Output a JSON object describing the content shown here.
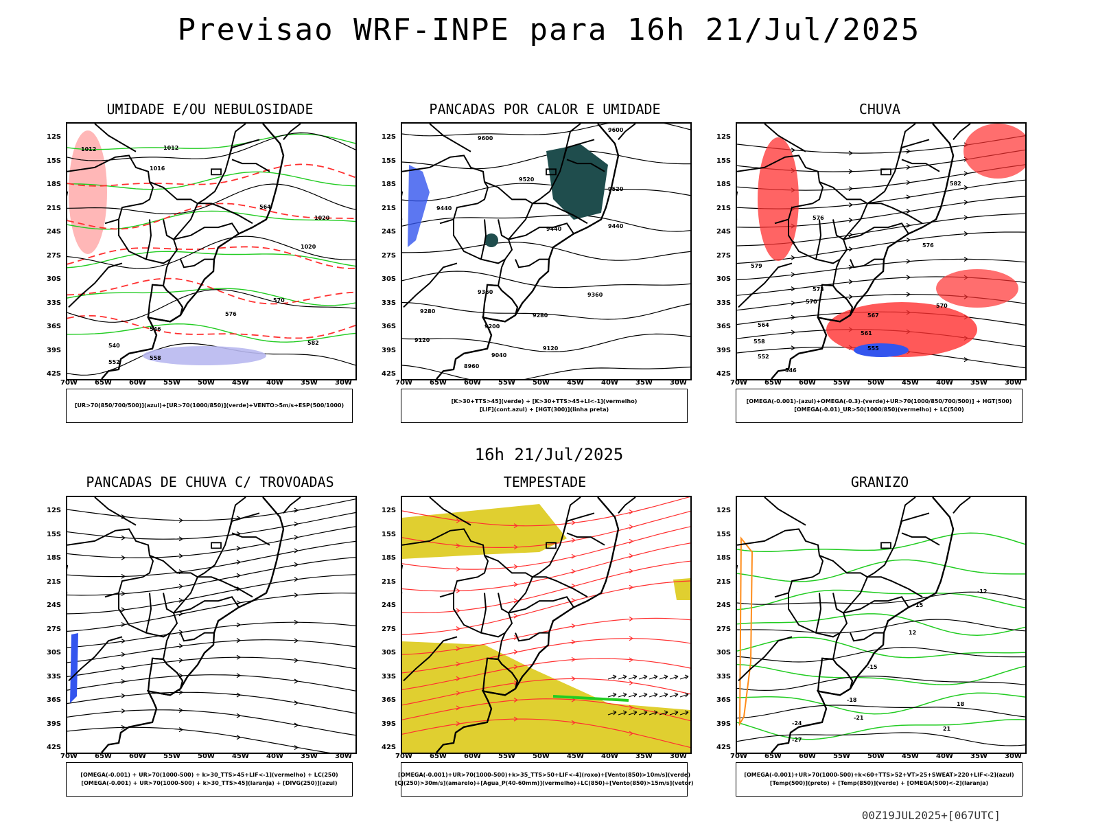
{
  "title": "Previsao WRF-INPE  para 16h 21/Jul/2025",
  "subtitle": "16h 21/Jul/2025",
  "footer": "00Z19JUL2025+[067UTC]",
  "lat_labels": [
    "12S",
    "15S",
    "18S",
    "21S",
    "24S",
    "27S",
    "30S",
    "33S",
    "36S",
    "39S",
    "42S"
  ],
  "lon_labels": [
    "70W",
    "65W",
    "60W",
    "55W",
    "50W",
    "45W",
    "40W",
    "35W",
    "30W"
  ],
  "colors": {
    "red": "#ff3030",
    "green": "#22cc22",
    "blue": "#3355ee",
    "teal": "#1f4d4d",
    "yellow": "#e0cf30",
    "lavender": "#b8b8f0",
    "orange": "#ff8c1a"
  },
  "panels": [
    {
      "title": "UMIDADE E/OU NEBULOSIDADE",
      "legend": [
        "[UR>70(850/700/500)](azul)+[UR>70(1000/850)](verde)+VENTO>5m/s+ESP(500/1000)"
      ],
      "contour_labels": [
        "1012",
        "1012",
        "1016",
        "1020",
        "1020",
        "564",
        "570",
        "576",
        "582",
        "540",
        "546",
        "552",
        "558"
      ]
    },
    {
      "title": "PANCADAS POR CALOR E UMIDADE",
      "legend": [
        "[K>30+TTS>45](verde) + [K>30+TTS>45+LI<-1](vermelho)",
        "[LIF](cont.azul) + [HGT(300)](linha preta)"
      ],
      "contour_labels": [
        "9600",
        "9600",
        "9520",
        "9520",
        "9440",
        "9440",
        "9440",
        "9360",
        "9360",
        "9280",
        "9280",
        "9200",
        "9120",
        "9120",
        "9040",
        "8960"
      ]
    },
    {
      "title": "CHUVA",
      "legend": [
        "[OMEGA(-0.001)-(azul)+OMEGA(-0.3)-(verde)+UR>70(1000/850/700/500)] + HGT(500)",
        "[OMEGA(-0.01)_UR>50(1000/850)(vermelho) + LC(500)"
      ],
      "contour_labels": [
        "582",
        "576",
        "576",
        "579",
        "573",
        "570",
        "570",
        "567",
        "564",
        "561",
        "558",
        "555",
        "552",
        "546"
      ]
    },
    {
      "title": "PANCADAS DE CHUVA C/ TROVOADAS",
      "legend": [
        "[OMEGA(-0.001) + UR>70(1000-500) + k>30_TTS>45+LIF<-1](vermelho) + LC(250)",
        "[OMEGA(-0.001) + UR>70(1000-500) + k>30_TTS>45](laranja) + [DIVG(250)](azul)"
      ],
      "contour_labels": []
    },
    {
      "title": "TEMPESTADE",
      "legend": [
        "[OMEGA(-0.001)+UR>70(1000-500)+k>35_TTS>50+LIF<-4](roxo)+[Vento(850)>10m/s](verde)",
        "[CJ(250)>30m/s](amarelo)+[Agua_P(40-60mm)](vermelho)+LC(850)+[Vento(850)>15m/s](vetor)"
      ],
      "contour_labels": []
    },
    {
      "title": "GRANIZO",
      "legend": [
        "[OMEGA(-0.001)+UR>70(1000-500)+k<60+TTS>52+VT>25+SWEAT>220+LIF<-2](azul)",
        "[Temp(500)](preto) + [Temp(850)](verde) + [OMEGA(500)<-2](laranja)"
      ],
      "contour_labels": [
        "-12",
        "12",
        "15",
        "-15",
        "-18",
        "18",
        "-21",
        "21",
        "-24",
        "-27"
      ]
    }
  ]
}
